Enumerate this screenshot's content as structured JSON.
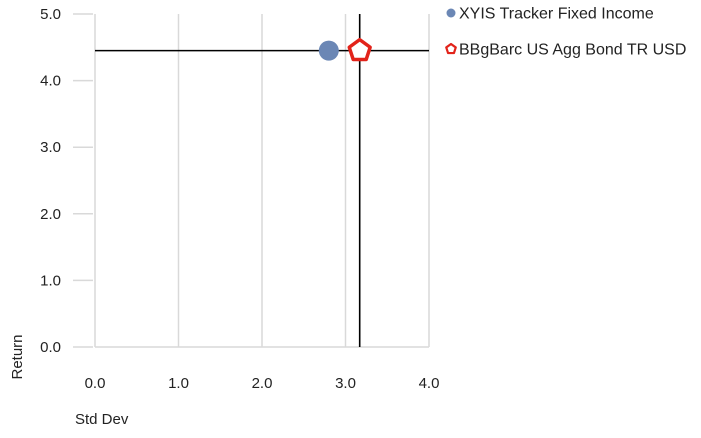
{
  "chart_data": {
    "type": "scatter",
    "xlabel": "Std Dev",
    "ylabel": "Return",
    "xlim": [
      0,
      4
    ],
    "ylim": [
      0,
      5
    ],
    "x_ticks": [
      0,
      1,
      2,
      3,
      4
    ],
    "x_tick_labels": [
      "0.0",
      "1.0",
      "2.0",
      "3.0",
      "4.0"
    ],
    "y_ticks": [
      0,
      1,
      2,
      3,
      4,
      5
    ],
    "y_tick_labels": [
      "0.0",
      "1.0",
      "2.0",
      "3.0",
      "4.0",
      "5.0"
    ],
    "grid": "vertical",
    "legend_position": "top-right",
    "series": [
      {
        "name": "XYIS Tracker Fixed Income",
        "marker": "circle",
        "color": "#6b87b5",
        "x": 2.8,
        "y": 4.45
      },
      {
        "name": "BBgBarc US Agg Bond TR USD",
        "marker": "pentagon",
        "color": "#e2231a",
        "x": 3.17,
        "y": 4.45
      }
    ],
    "reference_lines": {
      "x": 3.17,
      "y": 4.45,
      "color": "#000000"
    }
  }
}
